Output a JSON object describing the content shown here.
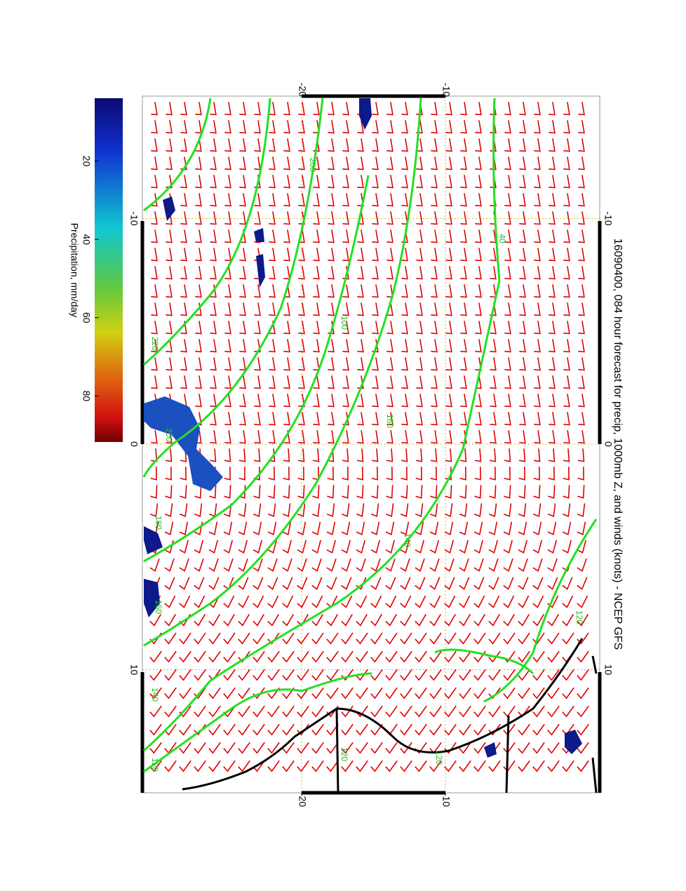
{
  "title": "16090400, 084 hour forecast for precip, 1000mb Z, and winds (knots) - NCEP GFS",
  "colorbar": {
    "label": "Precipitation, mm/day",
    "ticks": [
      20,
      40,
      60,
      80
    ]
  },
  "longitude_ticks": [
    -10,
    0,
    10
  ],
  "latitude_ticks": [
    -20,
    -10
  ],
  "contour_labels": [
    200,
    100,
    220,
    200,
    160,
    180,
    140,
    160,
    120,
    140,
    120,
    120,
    40,
    120
  ]
}
